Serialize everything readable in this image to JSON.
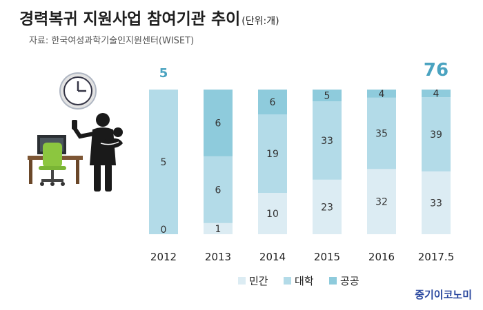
{
  "header": {
    "title": "경력복귀 지원사업 참여기관 추이",
    "unit": "(단위:개)",
    "source": "자료: 한국여성과학기술인지원센터(WISET)"
  },
  "branding": {
    "logo_text": "중기이코노미"
  },
  "illustration": {
    "icons": [
      "clock-icon",
      "office-desk-icon",
      "office-chair-icon",
      "parent-with-baby-icon"
    ]
  },
  "chart_data": {
    "type": "bar",
    "stacked": true,
    "categories": [
      "2012",
      "2013",
      "2014",
      "2015",
      "2016",
      "2017.5"
    ],
    "series": [
      {
        "name": "민간",
        "values": [
          0,
          1,
          10,
          23,
          32,
          33
        ],
        "color": "#dcecf3"
      },
      {
        "name": "대학",
        "values": [
          5,
          6,
          19,
          33,
          35,
          39
        ],
        "color": "#b3dbe8"
      },
      {
        "name": "공공",
        "values": [
          0,
          6,
          6,
          5,
          4,
          4
        ],
        "color": "#8ecbdc"
      }
    ],
    "bar_labels": [
      [
        "0",
        "5",
        ""
      ],
      [
        "1",
        "6",
        "6"
      ],
      [
        "10",
        "19",
        "6"
      ],
      [
        "23",
        "33",
        "5"
      ],
      [
        "32",
        "35",
        "4"
      ],
      [
        "33",
        "39",
        "4"
      ]
    ],
    "totals": [
      "5",
      "",
      "",
      "",
      "",
      "76"
    ],
    "accent_color": "#4aa3c0",
    "ylim": [
      0,
      76
    ],
    "legend_position": "bottom"
  }
}
